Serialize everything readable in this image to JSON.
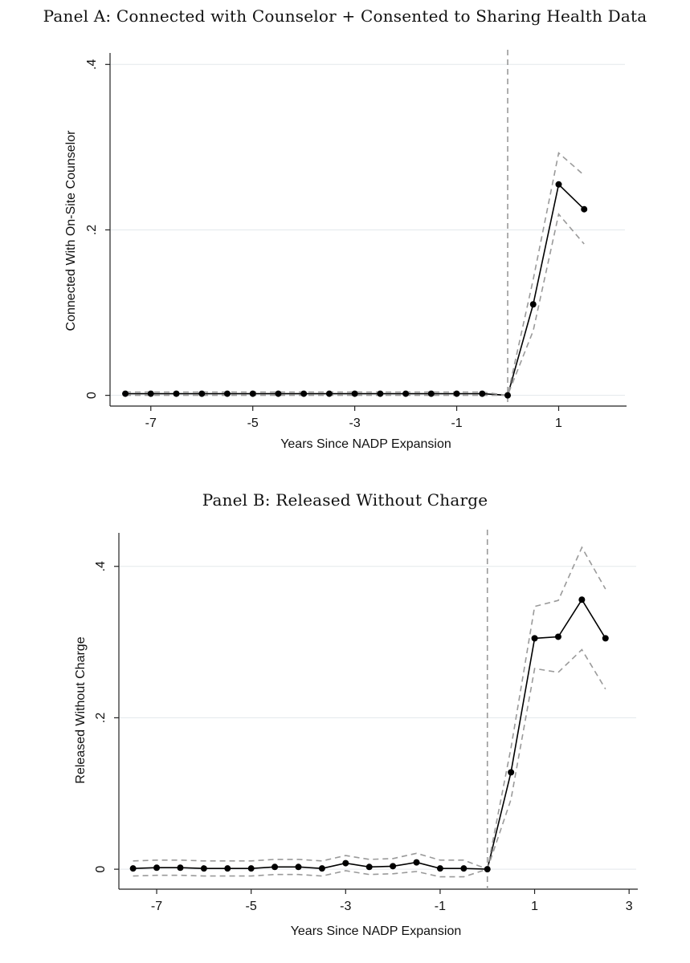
{
  "chart_data": [
    {
      "panel": "A",
      "type": "line",
      "title": "Panel A: Connected with Counselor + Consented to Sharing Health Data",
      "xlabel": "Years Since NADP Expansion",
      "ylabel": "Connected With On-Site Counselor",
      "xticks": [
        -7,
        -5,
        -3,
        -1,
        1
      ],
      "xtick_labels": [
        "-7",
        "-5",
        "-3",
        "-1",
        "1"
      ],
      "yticks": [
        0,
        0.2,
        0.4
      ],
      "ytick_labels": [
        "0",
        ".2",
        ".4"
      ],
      "xlim": [
        -7.8,
        2.3
      ],
      "ylim": [
        -0.012,
        0.41
      ],
      "grid": true,
      "vline_x": 0,
      "series": [
        {
          "name": "estimate",
          "x": [
            -7.5,
            -7,
            -6.5,
            -6,
            -5.5,
            -5,
            -4.5,
            -4,
            -3.5,
            -3,
            -2.5,
            -2,
            -1.5,
            -1,
            -0.5,
            0,
            0.5,
            1,
            1.5
          ],
          "y": [
            0.002,
            0.002,
            0.002,
            0.002,
            0.002,
            0.002,
            0.002,
            0.002,
            0.002,
            0.002,
            0.002,
            0.002,
            0.002,
            0.002,
            0.002,
            0,
            0.11,
            0.255,
            0.225
          ]
        },
        {
          "name": "upper_ci",
          "x": [
            -7.5,
            -7,
            -6.5,
            -6,
            -5.5,
            -5,
            -4.5,
            -4,
            -3.5,
            -3,
            -2.5,
            -2,
            -1.5,
            -1,
            -0.5,
            0,
            0.5,
            1,
            1.5
          ],
          "y": [
            0.004,
            0.004,
            0.004,
            0.004,
            0.004,
            0.004,
            0.004,
            0.004,
            0.004,
            0.004,
            0.004,
            0.004,
            0.004,
            0.004,
            0.004,
            0,
            0.14,
            0.293,
            0.266
          ]
        },
        {
          "name": "lower_ci",
          "x": [
            -7.5,
            -7,
            -6.5,
            -6,
            -5.5,
            -5,
            -4.5,
            -4,
            -3.5,
            -3,
            -2.5,
            -2,
            -1.5,
            -1,
            -0.5,
            0,
            0.5,
            1,
            1.5
          ],
          "y": [
            0.0,
            0.0,
            0.0,
            0.0,
            0.0,
            0.0,
            0.0,
            0.0,
            0.0,
            0.0,
            0.0,
            0.0,
            0.0,
            0.0,
            0.0,
            0,
            0.078,
            0.219,
            0.183
          ]
        }
      ]
    },
    {
      "panel": "B",
      "type": "line",
      "title": "Panel B: Released Without Charge",
      "xlabel": "Years Since NADP Expansion",
      "ylabel": "Released Without Charge",
      "xticks": [
        -7,
        -5,
        -3,
        -1,
        1,
        3
      ],
      "xtick_labels": [
        "-7",
        "-5",
        "-3",
        "-1",
        "1",
        "3"
      ],
      "yticks": [
        0,
        0.2,
        0.4
      ],
      "ytick_labels": [
        "0",
        ".2",
        ".4"
      ],
      "xlim": [
        -7.8,
        3.15
      ],
      "ylim": [
        -0.02,
        0.44
      ],
      "grid": true,
      "vline_x": 0,
      "series": [
        {
          "name": "estimate",
          "x": [
            -7.5,
            -7,
            -6.5,
            -6,
            -5.5,
            -5,
            -4.5,
            -4,
            -3.5,
            -3,
            -2.5,
            -2,
            -1.5,
            -1,
            -0.5,
            0,
            0.5,
            1,
            1.5,
            2,
            2.5
          ],
          "y": [
            0.001,
            0.002,
            0.002,
            0.001,
            0.001,
            0.001,
            0.003,
            0.003,
            0.001,
            0.008,
            0.003,
            0.004,
            0.009,
            0.001,
            0.001,
            0,
            0.128,
            0.305,
            0.307,
            0.356,
            0.305
          ]
        },
        {
          "name": "upper_ci",
          "x": [
            -7.5,
            -7,
            -6.5,
            -6,
            -5.5,
            -5,
            -4.5,
            -4,
            -3.5,
            -3,
            -2.5,
            -2,
            -1.5,
            -1,
            -0.5,
            0,
            0.5,
            1,
            1.5,
            2,
            2.5
          ],
          "y": [
            0.011,
            0.012,
            0.012,
            0.011,
            0.011,
            0.011,
            0.013,
            0.013,
            0.011,
            0.018,
            0.013,
            0.014,
            0.021,
            0.012,
            0.012,
            0,
            0.16,
            0.347,
            0.355,
            0.425,
            0.37
          ]
        },
        {
          "name": "lower_ci",
          "x": [
            -7.5,
            -7,
            -6.5,
            -6,
            -5.5,
            -5,
            -4.5,
            -4,
            -3.5,
            -3,
            -2.5,
            -2,
            -1.5,
            -1,
            -0.5,
            0,
            0.5,
            1,
            1.5,
            2,
            2.5
          ],
          "y": [
            -0.009,
            -0.008,
            -0.008,
            -0.009,
            -0.009,
            -0.009,
            -0.007,
            -0.007,
            -0.009,
            -0.002,
            -0.007,
            -0.006,
            -0.003,
            -0.01,
            -0.01,
            0,
            0.092,
            0.265,
            0.26,
            0.29,
            0.238
          ]
        }
      ]
    }
  ]
}
